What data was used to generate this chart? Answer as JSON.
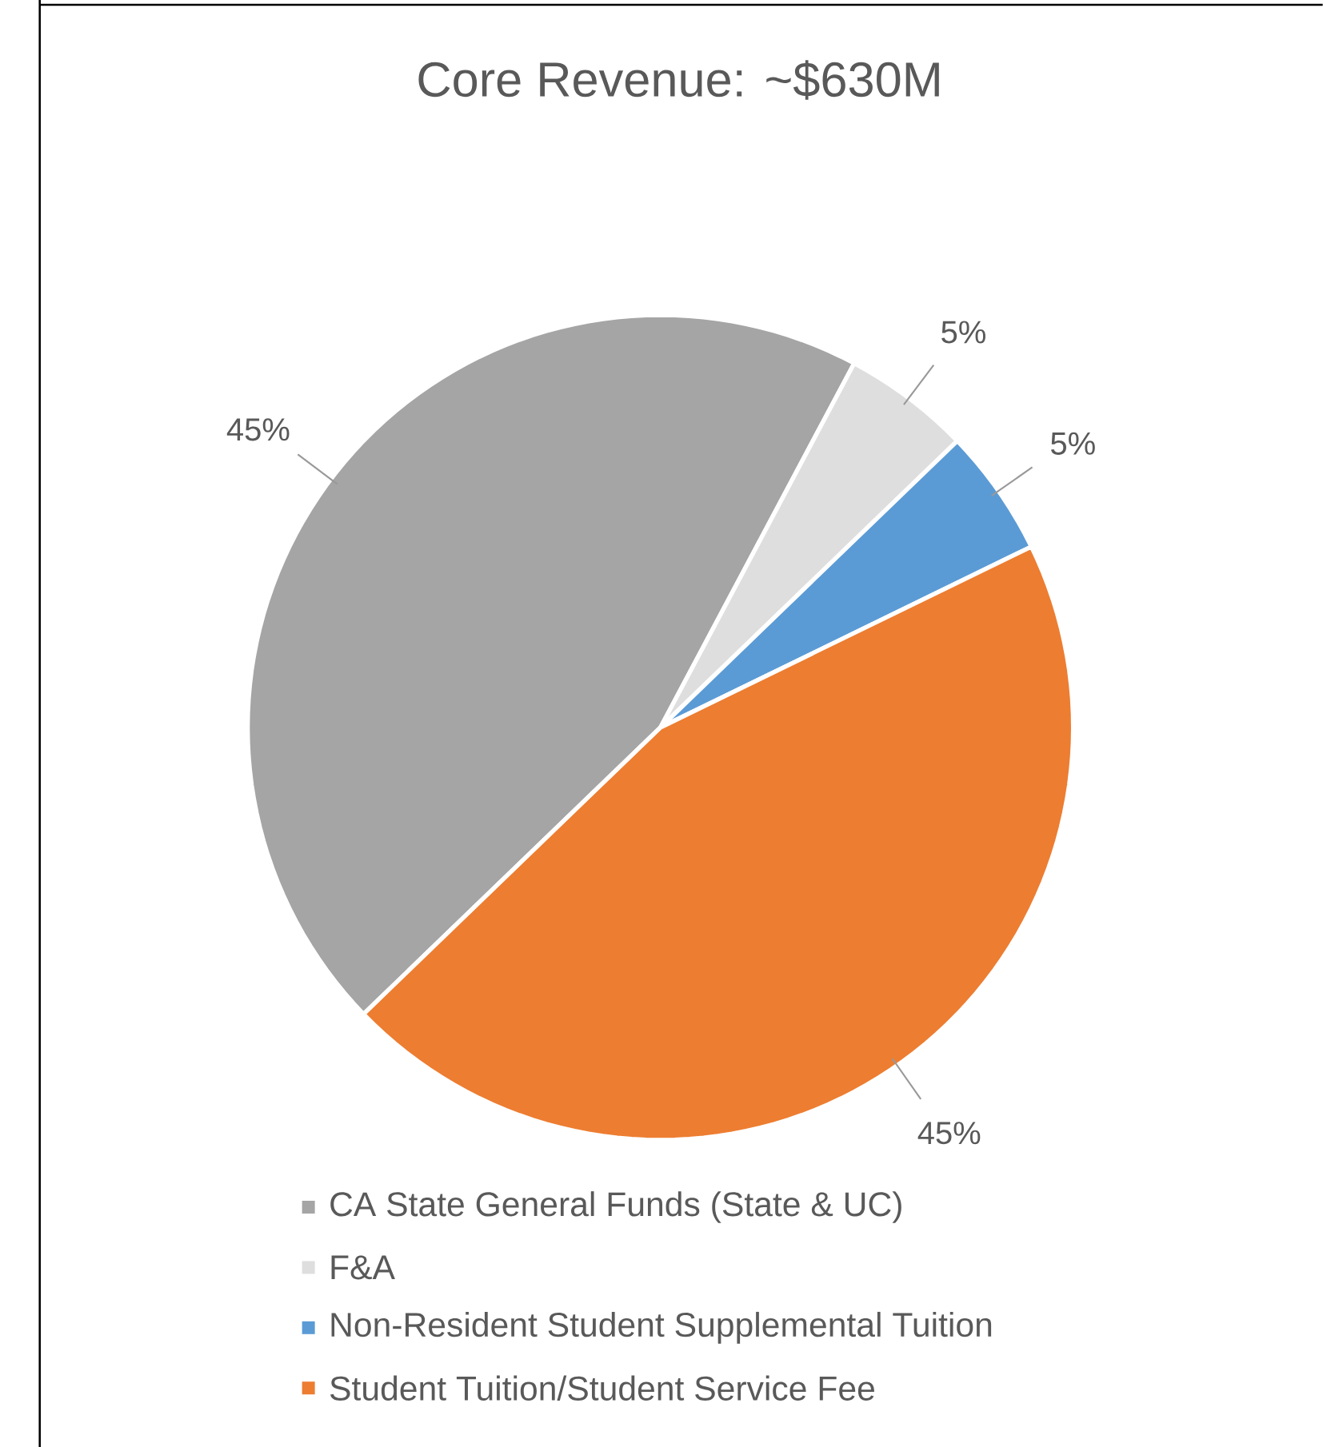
{
  "chart_data": {
    "type": "pie",
    "title": "Core Revenue: ~$630M",
    "categories": [
      "CA State General Funds (State & UC)",
      "F&A",
      "Non-Resident Student Supplemental Tuition",
      "Student Tuition/Student Service Fee"
    ],
    "values": [
      45,
      5,
      5,
      45
    ],
    "value_labels": [
      "45%",
      "5%",
      "5%",
      "45%"
    ],
    "colors": [
      "#a5a5a5",
      "#dedede",
      "#5b9bd5",
      "#ed7d31"
    ],
    "legend": "bottom"
  }
}
